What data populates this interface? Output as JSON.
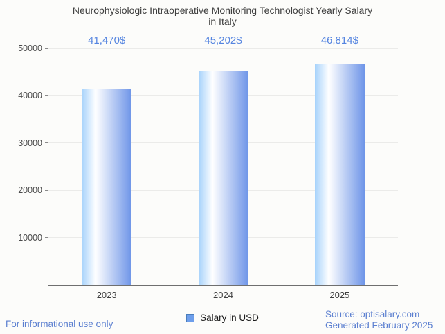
{
  "title": {
    "line1": "Neurophysiologic Intraoperative Monitoring Technologist Yearly Salary",
    "line2": "in Italy"
  },
  "chart_data": {
    "type": "bar",
    "title": "Neurophysiologic Intraoperative Monitoring Technologist Yearly Salary in Italy",
    "categories": [
      "2023",
      "2024",
      "2025"
    ],
    "values": [
      41470,
      45202,
      46814
    ],
    "value_labels": [
      "41,470$",
      "45,202$",
      "46,814$"
    ],
    "xlabel": "",
    "ylabel": "",
    "ylim": [
      0,
      50000
    ],
    "yticks": [
      {
        "value": 10000,
        "label": "10000"
      },
      {
        "value": 20000,
        "label": "20000"
      },
      {
        "value": 30000,
        "label": "30000"
      },
      {
        "value": 40000,
        "label": "40000"
      },
      {
        "value": 50000,
        "label": "50000"
      }
    ],
    "grid": true,
    "legend_position": "bottom",
    "legend_entries": [
      "Salary in USD"
    ]
  },
  "colors": {
    "background": "#fcfcfa",
    "title_text": "#3f3f3f",
    "axis_text": "#4a4a4a",
    "value_label_blue": "#5585e0",
    "footer_blue": "#5b7fd0",
    "gridline": "#ebebe9",
    "bar_gradient_left": "#a6d2fb",
    "bar_gradient_mid": "#ffffff",
    "bar_gradient_right": "#6e95e8",
    "legend_swatch_fill": "#6d9eeb",
    "legend_swatch_border": "#4a7ebb"
  },
  "footer": {
    "disclaimer": "For informational use only",
    "legend_label": "Salary in USD",
    "source_line1": "Source: optisalary.com",
    "source_line2": "Generated February 2025"
  }
}
